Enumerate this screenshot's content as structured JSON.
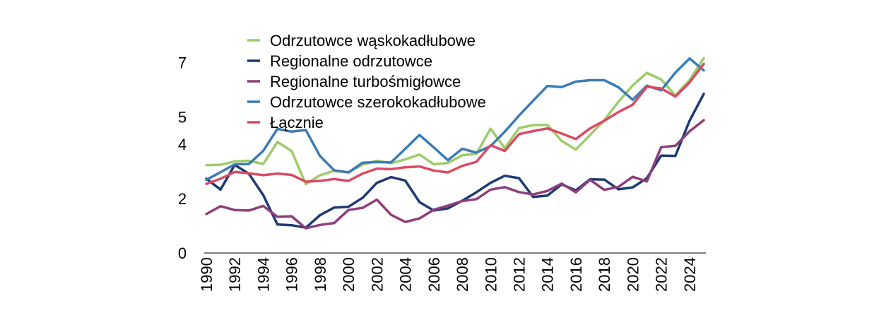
{
  "chart_data": {
    "type": "line",
    "title": "",
    "xlabel": "",
    "ylabel": "",
    "ylim": [
      0,
      8
    ],
    "yticks": [
      0,
      2,
      4,
      5,
      7
    ],
    "ytick_labels": [
      "0",
      "2",
      "4",
      "5",
      "7"
    ],
    "xticks": [
      1990,
      1992,
      1994,
      1996,
      1998,
      2000,
      2002,
      2004,
      2006,
      2008,
      2010,
      2012,
      2014,
      2016,
      2018,
      2020,
      2022,
      2024
    ],
    "xtick_labels": [
      "1990",
      "1992",
      "1994",
      "1996",
      "1998",
      "2000",
      "2002",
      "2004",
      "2006",
      "2008",
      "2010",
      "2012",
      "2014",
      "2016",
      "2018",
      "2020",
      "2022",
      "2024"
    ],
    "grid": false,
    "legend_position": "top-left",
    "x": [
      1990,
      1991,
      1992,
      1993,
      1994,
      1995,
      1996,
      1997,
      1998,
      1999,
      2000,
      2001,
      2002,
      2003,
      2004,
      2005,
      2006,
      2007,
      2008,
      2009,
      2010,
      2011,
      2012,
      2013,
      2014,
      2015,
      2016,
      2017,
      2018,
      2019,
      2020,
      2021,
      2022,
      2023,
      2024,
      2025
    ],
    "series": [
      {
        "name": "Odrzutowce wąskokadłubowe",
        "color": "#9dcc6a",
        "values": [
          3.23,
          3.24,
          3.37,
          3.39,
          3.27,
          4.08,
          3.75,
          2.53,
          2.86,
          3.02,
          2.96,
          3.25,
          3.39,
          3.3,
          3.44,
          3.62,
          3.26,
          3.31,
          3.59,
          3.65,
          4.57,
          3.85,
          4.59,
          4.7,
          4.71,
          4.12,
          3.8,
          4.34,
          4.88,
          5.56,
          6.16,
          6.62,
          6.38,
          5.79,
          6.35,
          7.16
        ]
      },
      {
        "name": "Regionalne odrzutowce",
        "color": "#1d3a72",
        "values": [
          2.73,
          2.33,
          3.24,
          2.91,
          2.13,
          1.05,
          1.02,
          0.93,
          1.39,
          1.67,
          1.7,
          2.03,
          2.58,
          2.79,
          2.66,
          1.87,
          1.56,
          1.64,
          1.92,
          2.23,
          2.58,
          2.84,
          2.75,
          2.06,
          2.11,
          2.52,
          2.3,
          2.71,
          2.7,
          2.34,
          2.41,
          2.75,
          3.58,
          3.57,
          4.86,
          5.85
        ]
      },
      {
        "name": "Regionalne turbośmigłowce",
        "color": "#8e3d7c",
        "values": [
          1.43,
          1.72,
          1.58,
          1.56,
          1.73,
          1.33,
          1.35,
          0.91,
          1.03,
          1.1,
          1.58,
          1.66,
          1.96,
          1.4,
          1.14,
          1.27,
          1.59,
          1.74,
          1.91,
          1.98,
          2.33,
          2.42,
          2.24,
          2.15,
          2.28,
          2.55,
          2.23,
          2.69,
          2.32,
          2.43,
          2.8,
          2.63,
          3.89,
          3.94,
          4.47,
          4.88
        ]
      },
      {
        "name": "Odrzutowce szerokokadłubowe",
        "color": "#3b7cb5",
        "values": [
          2.69,
          2.97,
          3.26,
          3.27,
          3.75,
          4.56,
          4.46,
          4.52,
          3.56,
          3.04,
          2.96,
          3.32,
          3.34,
          3.33,
          3.83,
          4.34,
          3.88,
          3.41,
          3.83,
          3.69,
          3.93,
          4.46,
          5.05,
          5.6,
          6.14,
          6.1,
          6.3,
          6.35,
          6.35,
          6.09,
          5.63,
          6.15,
          5.98,
          6.63,
          7.15,
          6.71
        ]
      },
      {
        "name": "Łącznie",
        "color": "#db4a63",
        "values": [
          2.54,
          2.73,
          2.98,
          2.93,
          2.86,
          2.92,
          2.87,
          2.62,
          2.65,
          2.72,
          2.65,
          2.92,
          3.1,
          3.08,
          3.15,
          3.18,
          3.03,
          2.96,
          3.2,
          3.35,
          3.96,
          3.75,
          4.37,
          4.48,
          4.58,
          4.39,
          4.19,
          4.58,
          4.86,
          5.18,
          5.45,
          6.11,
          6.05,
          5.75,
          6.27,
          6.95
        ]
      }
    ]
  }
}
